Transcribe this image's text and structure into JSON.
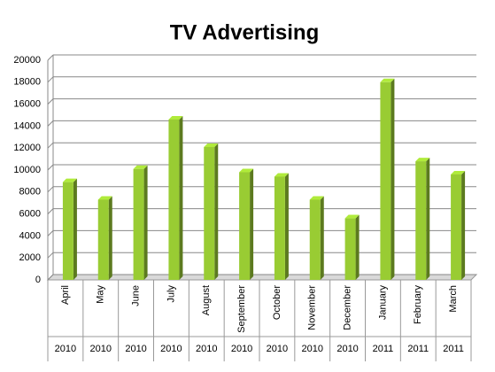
{
  "chart_data": {
    "type": "bar3d",
    "title": "TV Advertising",
    "categories": [
      "April",
      "May",
      "June",
      "July",
      "August",
      "September",
      "October",
      "November",
      "December",
      "January",
      "February",
      "March"
    ],
    "years": [
      "2010",
      "2010",
      "2010",
      "2010",
      "2010",
      "2010",
      "2010",
      "2010",
      "2010",
      "2011",
      "2011",
      "2011"
    ],
    "values": [
      8900,
      7300,
      10100,
      14600,
      12100,
      9800,
      9400,
      7300,
      5600,
      18000,
      10800,
      9600
    ],
    "color": "#99cc33",
    "ylim": [
      0,
      20000
    ],
    "yticks": [
      0,
      2000,
      4000,
      6000,
      8000,
      10000,
      12000,
      14000,
      16000,
      18000,
      20000
    ],
    "grid": true
  }
}
